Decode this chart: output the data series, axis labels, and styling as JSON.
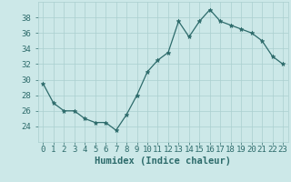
{
  "x": [
    0,
    1,
    2,
    3,
    4,
    5,
    6,
    7,
    8,
    9,
    10,
    11,
    12,
    13,
    14,
    15,
    16,
    17,
    18,
    19,
    20,
    21,
    22,
    23
  ],
  "y": [
    29.5,
    27,
    26,
    26,
    25,
    24.5,
    24.5,
    23.5,
    25.5,
    28,
    31,
    32.5,
    33.5,
    37.5,
    35.5,
    37.5,
    39,
    37.5,
    37,
    36.5,
    36,
    35,
    33,
    32
  ],
  "line_color": "#2d6b6b",
  "marker": "*",
  "marker_size": 3.5,
  "bg_color": "#cce8e8",
  "grid_color": "#aacfcf",
  "xlabel": "Humidex (Indice chaleur)",
  "ylim": [
    22,
    40
  ],
  "xlim": [
    -0.5,
    23.5
  ],
  "yticks": [
    24,
    26,
    28,
    30,
    32,
    34,
    36,
    38
  ],
  "xlabel_fontsize": 7.5,
  "tick_fontsize": 6.5,
  "label_color": "#2d6b6b"
}
